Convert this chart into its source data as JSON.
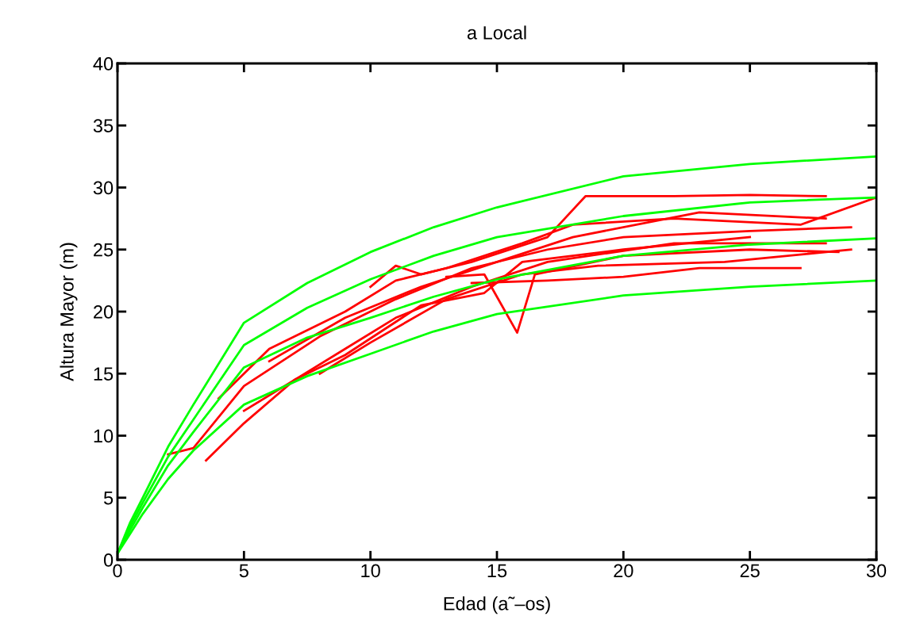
{
  "chart_data": {
    "type": "line",
    "title": "a Local",
    "xlabel": "Edad (a˜–os)",
    "ylabel": "Altura Mayor (m)",
    "xlim": [
      0,
      30
    ],
    "ylim": [
      0,
      40
    ],
    "xticks": [
      0,
      5,
      10,
      15,
      20,
      25,
      30
    ],
    "yticks": [
      0,
      5,
      10,
      15,
      20,
      25,
      30,
      35,
      40
    ],
    "marker": "none",
    "line_style": "solid",
    "series": [
      {
        "color": "#ff0000",
        "x": [
          3.5,
          5,
          7,
          9,
          11,
          14,
          17,
          22,
          28
        ],
        "values": [
          8,
          11,
          14.5,
          17,
          19.5,
          22,
          24,
          25.5,
          25.5
        ]
      },
      {
        "color": "#ff0000",
        "x": [
          2,
          3,
          5,
          8,
          11,
          14,
          17,
          20,
          25,
          29
        ],
        "values": [
          8.5,
          9,
          14,
          18,
          21,
          23.5,
          25,
          26,
          26.5,
          26.8
        ]
      },
      {
        "color": "#ff0000",
        "x": [
          4,
          6,
          9,
          11,
          13,
          16,
          18,
          22,
          27,
          30
        ],
        "values": [
          13,
          17,
          20,
          22.5,
          23.5,
          25.5,
          27,
          27.5,
          27,
          29.2
        ]
      },
      {
        "color": "#ff0000",
        "x": [
          10,
          11,
          12,
          14,
          17,
          18.5,
          22,
          25,
          28
        ],
        "values": [
          22,
          23.7,
          23,
          24,
          26,
          29.3,
          29.3,
          29.4,
          29.3
        ]
      },
      {
        "color": "#ff0000",
        "x": [
          13,
          14.5,
          15.8,
          16.5,
          20,
          25,
          28.5
        ],
        "values": [
          22.8,
          23,
          18.3,
          23,
          24.5,
          25,
          24.8
        ]
      },
      {
        "color": "#ff0000",
        "x": [
          5,
          7,
          9,
          12,
          14.5,
          16,
          20,
          25
        ],
        "values": [
          12,
          14.5,
          16.5,
          20.5,
          21.5,
          24,
          25,
          26
        ]
      },
      {
        "color": "#ff0000",
        "x": [
          8,
          10,
          13,
          16,
          19,
          24,
          29
        ],
        "values": [
          15,
          17.5,
          21,
          23,
          23.7,
          24,
          25
        ]
      },
      {
        "color": "#ff0000",
        "x": [
          6,
          9,
          12,
          15,
          18,
          23,
          28
        ],
        "values": [
          16,
          19.5,
          22,
          24,
          26,
          28,
          27.5
        ]
      },
      {
        "color": "#ff0000",
        "x": [
          14,
          17,
          20,
          23,
          27
        ],
        "values": [
          22.3,
          22.5,
          22.8,
          23.5,
          23.5
        ]
      },
      {
        "color": "#00ff00",
        "x": [
          0,
          0.5,
          1,
          2,
          3,
          5,
          7.5,
          10,
          12.5,
          15,
          20,
          25,
          30
        ],
        "values": [
          0.5,
          3,
          5,
          9.1,
          12.5,
          19.1,
          22.3,
          24.8,
          26.8,
          28.4,
          30.9,
          31.9,
          32.5
        ]
      },
      {
        "color": "#00ff00",
        "x": [
          0,
          0.5,
          1,
          2,
          3,
          5,
          7.5,
          10,
          12.5,
          15,
          20,
          25,
          30
        ],
        "values": [
          0.5,
          2.7,
          4.6,
          8.3,
          11.3,
          17.3,
          20.3,
          22.6,
          24.5,
          26.0,
          27.7,
          28.8,
          29.2
        ]
      },
      {
        "color": "#00ff00",
        "x": [
          0,
          0.5,
          1,
          2,
          3,
          5,
          7.5,
          10,
          12.5,
          15,
          20,
          25,
          30
        ],
        "values": [
          0.5,
          2.4,
          4.2,
          7.6,
          10.3,
          15.5,
          17.9,
          19.5,
          21.2,
          22.6,
          24.5,
          25.4,
          25.9
        ]
      },
      {
        "color": "#00ff00",
        "x": [
          0,
          0.5,
          1,
          2,
          3,
          5,
          7.5,
          10,
          12.5,
          15,
          20,
          25,
          30
        ],
        "values": [
          0.5,
          2.1,
          3.7,
          6.5,
          8.8,
          12.5,
          14.8,
          16.6,
          18.4,
          19.8,
          21.3,
          22.0,
          22.5
        ]
      }
    ]
  }
}
